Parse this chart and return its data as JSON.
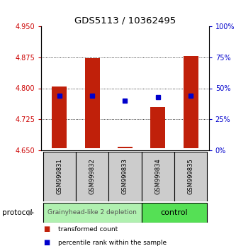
{
  "title": "GDS5113 / 10362495",
  "samples": [
    "GSM999831",
    "GSM999832",
    "GSM999833",
    "GSM999834",
    "GSM999835"
  ],
  "bar_bottoms": [
    4.655,
    4.655,
    4.655,
    4.655,
    4.655
  ],
  "bar_tops": [
    4.805,
    4.872,
    4.658,
    4.755,
    4.878
  ],
  "percentile_ranks": [
    44,
    44,
    40,
    43,
    44
  ],
  "ylim_left": [
    4.65,
    4.95
  ],
  "ylim_right": [
    0,
    100
  ],
  "yticks_left": [
    4.65,
    4.725,
    4.8,
    4.875,
    4.95
  ],
  "yticks_right": [
    0,
    25,
    50,
    75,
    100
  ],
  "bar_color": "#c0200a",
  "percentile_color": "#0000cc",
  "group_labels": [
    "Grainyhead-like 2 depletion",
    "control"
  ],
  "group_colors": [
    "#b0f0b0",
    "#55e055"
  ],
  "protocol_label": "protocol",
  "legend_items": [
    {
      "label": "transformed count",
      "color": "#c0200a"
    },
    {
      "label": "percentile rank within the sample",
      "color": "#0000cc"
    }
  ],
  "tick_label_color_left": "#cc0000",
  "tick_label_color_right": "#0000cc",
  "grid_yticks": [
    4.875,
    4.8,
    4.725
  ]
}
